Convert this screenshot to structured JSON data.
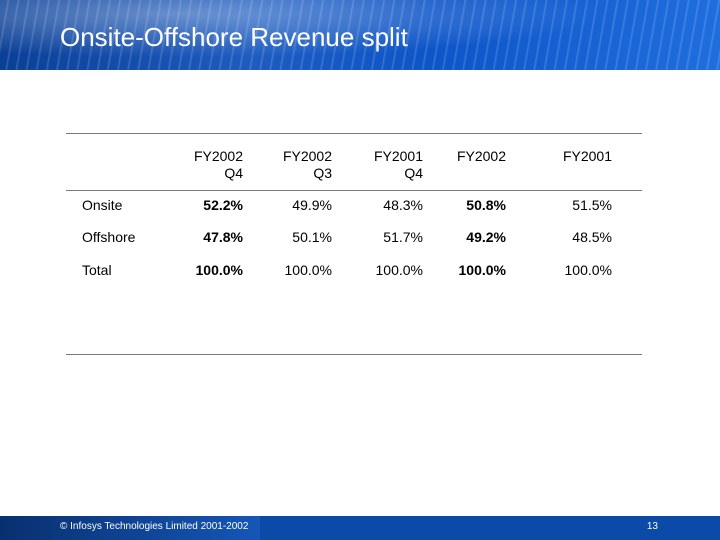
{
  "slide": {
    "title": "Onsite-Offshore Revenue split",
    "footer_copyright": "© Infosys Technologies Limited 2001-2002",
    "page_number": "13"
  },
  "table": {
    "headers": [
      {
        "line1": "FY2002",
        "line2": "Q4"
      },
      {
        "line1": "FY2002",
        "line2": "Q3"
      },
      {
        "line1": "FY2001",
        "line2": "Q4"
      },
      {
        "line1": "FY2002",
        "line2": ""
      },
      {
        "line1": "FY2001",
        "line2": ""
      }
    ],
    "rows": [
      {
        "label": "Onsite",
        "values": [
          "52.2%",
          "49.9%",
          "48.3%",
          "50.8%",
          "51.5%"
        ]
      },
      {
        "label": "Offshore",
        "values": [
          "47.8%",
          "50.1%",
          "51.7%",
          "49.2%",
          "48.5%"
        ]
      },
      {
        "label": "Total",
        "values": [
          "100.0%",
          "100.0%",
          "100.0%",
          "100.0%",
          "100.0%"
        ]
      }
    ]
  },
  "colors": {
    "banner": "#1d5cc0",
    "footer": "#0b4aa6",
    "rule": "#7a7a7a"
  }
}
